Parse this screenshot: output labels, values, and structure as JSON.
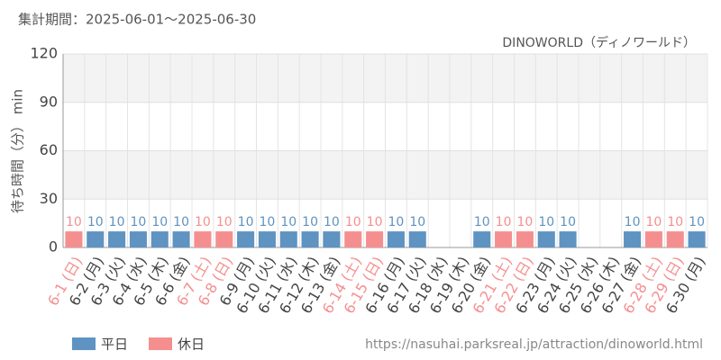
{
  "chart_data": {
    "type": "bar",
    "title": "集計期間：2025-06-01～2025-06-30",
    "subtitle": "DINOWORLD（ディノワールド）",
    "y_label": "待ち時間（分） min",
    "source": "https://nasuhai.parksreal.jp/attraction/dinoworld.html",
    "categories": [
      "6-1 (日)",
      "6-2 (月)",
      "6-3 (火)",
      "6-4 (水)",
      "6-5 (木)",
      "6-6 (金)",
      "6-7 (土)",
      "6-8 (日)",
      "6-9 (月)",
      "6-10 (火)",
      "6-11 (水)",
      "6-12 (木)",
      "6-13 (金)",
      "6-14 (土)",
      "6-15 (日)",
      "6-16 (月)",
      "6-17 (火)",
      "6-18 (水)",
      "6-19 (木)",
      "6-20 (金)",
      "6-21 (土)",
      "6-22 (日)",
      "6-23 (月)",
      "6-24 (火)",
      "6-25 (水)",
      "6-26 (木)",
      "6-27 (金)",
      "6-28 (土)",
      "6-29 (日)",
      "6-30 (月)"
    ],
    "series": [
      {
        "name": "平日",
        "color": "#5f93c1",
        "values": [
          null,
          10,
          10,
          10,
          10,
          10,
          null,
          null,
          10,
          10,
          10,
          10,
          10,
          null,
          null,
          10,
          10,
          null,
          null,
          10,
          null,
          null,
          10,
          10,
          null,
          null,
          10,
          null,
          null,
          10
        ]
      },
      {
        "name": "休日",
        "color": "#f58f8f",
        "values": [
          10,
          null,
          null,
          null,
          null,
          null,
          10,
          10,
          null,
          null,
          null,
          null,
          null,
          10,
          10,
          null,
          null,
          null,
          null,
          null,
          10,
          10,
          null,
          null,
          null,
          null,
          null,
          10,
          10,
          null
        ]
      }
    ],
    "ylim": [
      0,
      120
    ],
    "yticks": [
      0,
      30,
      60,
      90,
      120
    ],
    "grid": true
  }
}
